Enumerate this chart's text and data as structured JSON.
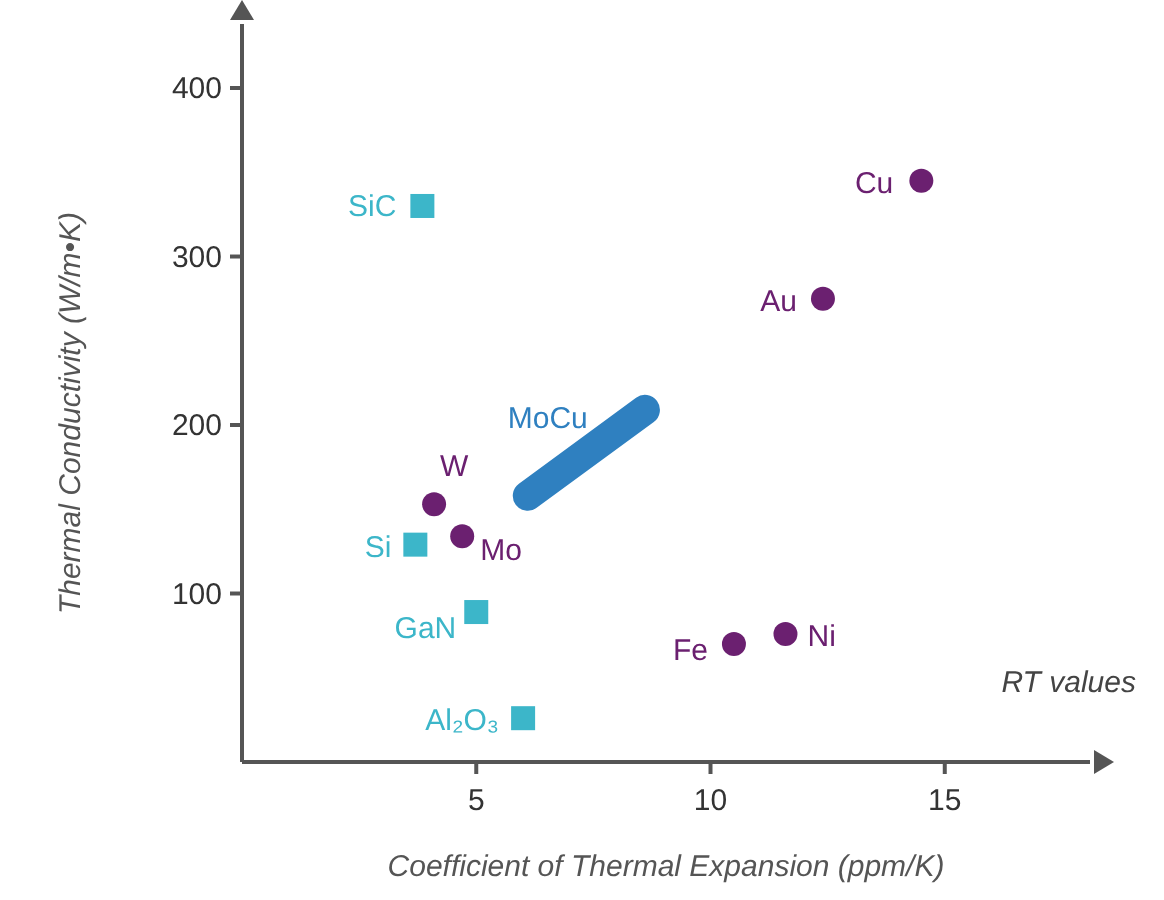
{
  "chart_data": {
    "type": "scatter",
    "xlabel": "Coefficient of Thermal Expansion (ppm/K)",
    "ylabel": "Thermal Conductivity (W/m•K)",
    "xlim": [
      0,
      18.1
    ],
    "ylim": [
      0,
      438
    ],
    "xticks": [
      5,
      10,
      15
    ],
    "yticks": [
      100,
      200,
      300,
      400
    ],
    "grid": false,
    "series": [
      {
        "color": "#3cb6c9",
        "marker": "square",
        "x": [
          3.85,
          3.7,
          5.0,
          6.0
        ],
        "values": [
          330,
          129,
          89,
          26
        ]
      },
      {
        "color": "#6b2070",
        "marker": "circle",
        "x": [
          4.1,
          4.7,
          14.5,
          12.4,
          10.5,
          11.6
        ],
        "values": [
          153,
          134,
          345,
          275,
          70,
          76
        ]
      },
      {
        "name": "MoCu",
        "type": "line",
        "color": "#2f80c0",
        "marker": "none",
        "x": [
          6.1,
          8.6
        ],
        "values": [
          158,
          209
        ]
      }
    ],
    "annotations": [
      {
        "text": "SiC",
        "x": 3.85,
        "y": 330
      },
      {
        "text": "Si",
        "x": 3.7,
        "y": 129
      },
      {
        "text": "GaN",
        "x": 5.0,
        "y": 89
      },
      {
        "text": "Al₂O₃",
        "x": 6.0,
        "y": 26
      },
      {
        "text": "W",
        "x": 4.1,
        "y": 153
      },
      {
        "text": "Mo",
        "x": 4.7,
        "y": 134
      },
      {
        "text": "Cu",
        "x": 14.5,
        "y": 345
      },
      {
        "text": "Au",
        "x": 12.4,
        "y": 275
      },
      {
        "text": "Fe",
        "x": 10.5,
        "y": 70
      },
      {
        "text": "Ni",
        "x": 11.6,
        "y": 76
      },
      "RT values"
    ]
  }
}
